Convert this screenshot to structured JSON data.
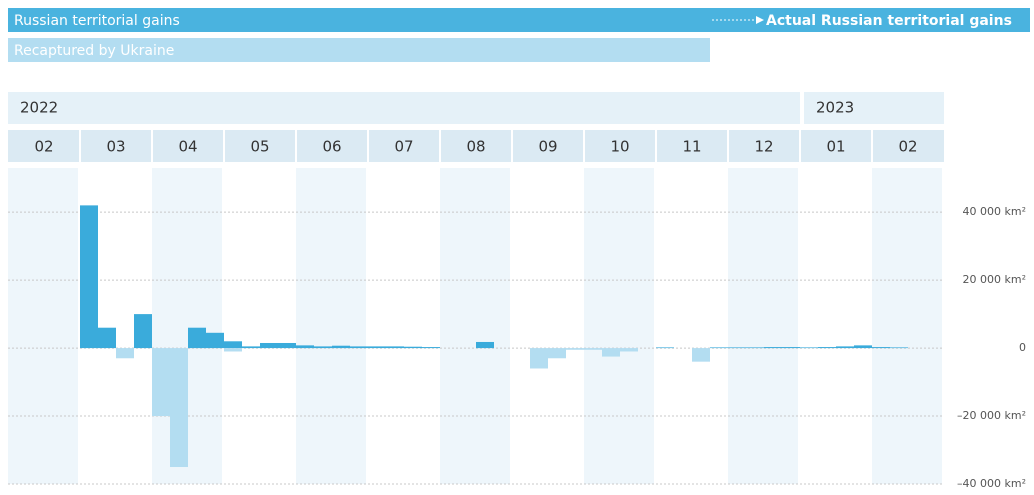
{
  "chart_data": {
    "type": "bar",
    "annotation": "Actual Russian territorial gains",
    "years": [
      "2022",
      "2023"
    ],
    "categories": [
      "02",
      null,
      null,
      null,
      "03",
      null,
      null,
      null,
      "04",
      null,
      null,
      null,
      "05",
      null,
      null,
      null,
      "06",
      null,
      null,
      null,
      "07",
      null,
      null,
      null,
      "08",
      null,
      null,
      null,
      "09",
      null,
      null,
      null,
      "10",
      null,
      null,
      null,
      "11",
      null,
      null,
      null,
      "12",
      null,
      null,
      null,
      "01",
      null,
      null,
      null,
      "02",
      null,
      null,
      null
    ],
    "series": [
      {
        "name": "Russian territorial gains",
        "color": "#3aabdb",
        "values": [
          0,
          0,
          0,
          0,
          42000,
          6000,
          0,
          10000,
          0,
          0,
          6000,
          4500,
          2000,
          500,
          1500,
          1500,
          800,
          500,
          700,
          500,
          500,
          500,
          400,
          300,
          0,
          0,
          1800,
          0,
          0,
          0,
          0,
          0,
          0,
          0,
          0,
          0,
          200,
          0,
          0,
          200,
          200,
          200,
          300,
          300,
          200,
          300,
          500,
          800,
          300,
          200,
          0,
          0
        ]
      },
      {
        "name": "Recaptured by Ukraine",
        "color": "#b3ddf1",
        "values": [
          0,
          0,
          0,
          0,
          0,
          0,
          -3000,
          0,
          -20000,
          -35000,
          0,
          0,
          -1000,
          0,
          0,
          0,
          0,
          0,
          0,
          0,
          0,
          0,
          0,
          0,
          0,
          0,
          0,
          0,
          0,
          -6000,
          -3000,
          -500,
          -500,
          -2500,
          -1000,
          0,
          0,
          0,
          -4000,
          0,
          0,
          0,
          0,
          0,
          0,
          0,
          0,
          0,
          0,
          0,
          0,
          0
        ]
      }
    ],
    "ylim": [
      -40000,
      53000
    ],
    "yticks": [
      {
        "value": 40000,
        "label": "40 000 km²"
      },
      {
        "value": 20000,
        "label": "20 000 km²"
      },
      {
        "value": 0,
        "label": "0"
      },
      {
        "value": -20000,
        "label": "–20 000 km²"
      },
      {
        "value": -40000,
        "label": "–40 000 km²"
      }
    ],
    "grid": true
  }
}
